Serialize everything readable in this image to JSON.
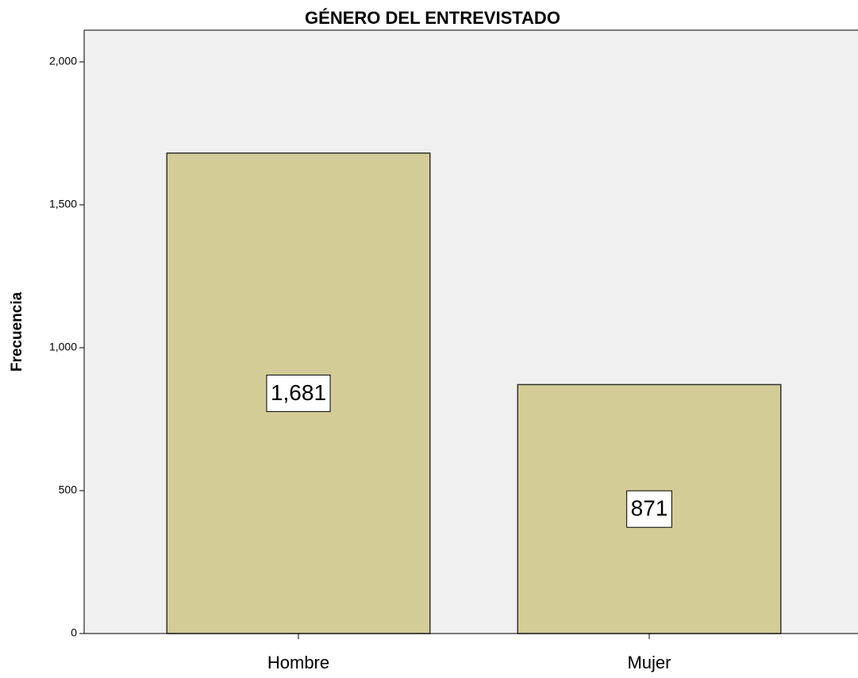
{
  "chart_data": {
    "type": "bar",
    "title": "GÉNERO DEL ENTREVISTADO",
    "ylabel": "Frecuencia",
    "categories": [
      "Hombre",
      "Mujer"
    ],
    "values": [
      1681,
      871
    ],
    "value_labels": [
      "1,681",
      "871"
    ],
    "color": "#d3cc96",
    "ylim": [
      0,
      2111
    ],
    "yticks": [
      0,
      500,
      {
        "value": 1000,
        "label": "1,000"
      },
      {
        "value": 1500,
        "label": "1,500"
      },
      {
        "value": 2000,
        "label": "2,000"
      }
    ],
    "grid": false
  }
}
